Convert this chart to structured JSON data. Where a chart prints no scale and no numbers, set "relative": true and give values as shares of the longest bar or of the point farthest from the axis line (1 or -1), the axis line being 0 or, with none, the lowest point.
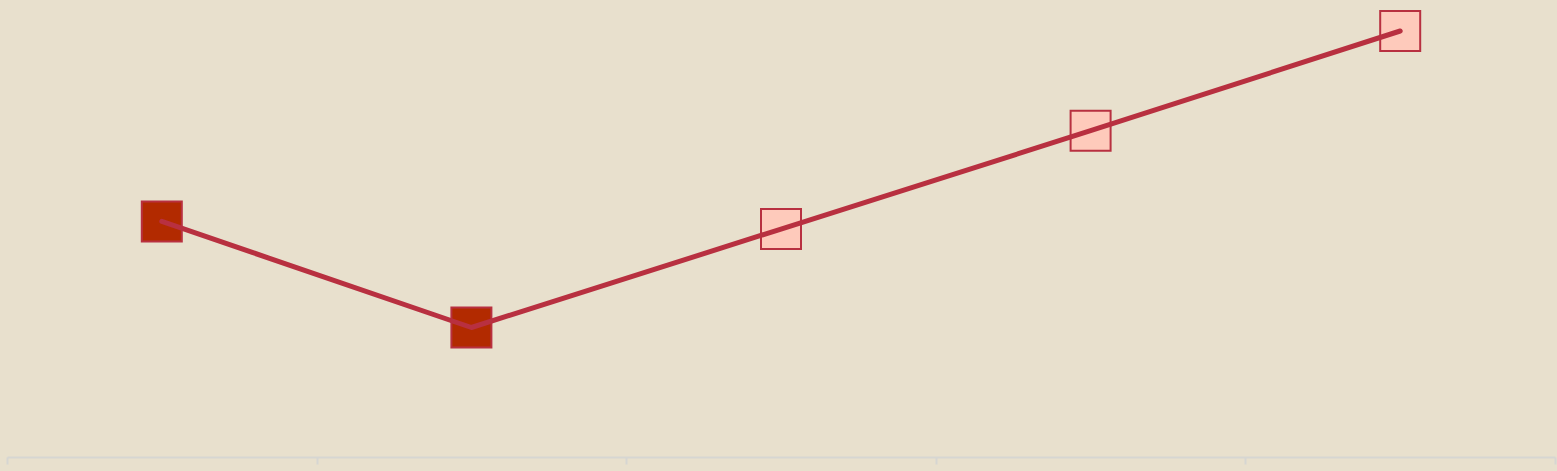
{
  "chart_data": {
    "type": "line",
    "relative": true,
    "categories": [
      null,
      null,
      null,
      null,
      null
    ],
    "series": [
      {
        "color": "#b83040",
        "colors": [
          "#b22a00",
          "#b22a00",
          "#fecabb",
          "#fecabb",
          "#fecabb"
        ],
        "values": [
          0.553,
          0.304,
          0.535,
          0.766,
          1
        ]
      }
    ],
    "marker": "square",
    "line_style": "solid"
  }
}
